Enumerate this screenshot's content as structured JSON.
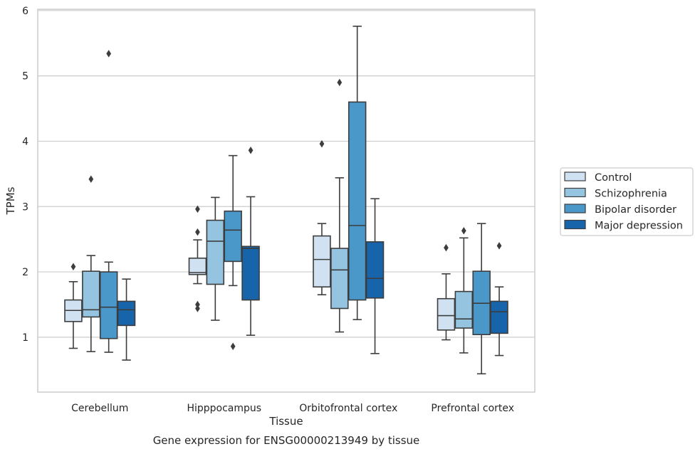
{
  "chart_data": {
    "type": "box",
    "title": "",
    "caption": "Gene expression for ENSG00000213949 by tissue",
    "xlabel": "Tissue",
    "ylabel": "TPMs",
    "ylim": [
      0.16,
      6.02
    ],
    "yticks": [
      1,
      2,
      3,
      4,
      5,
      6
    ],
    "grid": "horizontal",
    "legend_position": "right",
    "categories": [
      "Cerebellum",
      "Hipppocampus",
      "Orbitofrontal cortex",
      "Prefrontal cortex"
    ],
    "series": [
      {
        "name": "Control",
        "color": "#d0e1f2",
        "boxes": [
          {
            "whisker_low": 0.83,
            "q1": 1.24,
            "median": 1.41,
            "q3": 1.57,
            "whisker_high": 1.85,
            "outliers": [
              2.08
            ]
          },
          {
            "whisker_low": 1.82,
            "q1": 1.96,
            "median": 1.99,
            "q3": 2.21,
            "whisker_high": 2.49,
            "outliers": [
              2.96,
              2.61,
              1.5,
              1.44
            ]
          },
          {
            "whisker_low": 1.65,
            "q1": 1.77,
            "median": 2.19,
            "q3": 2.55,
            "whisker_high": 2.74,
            "outliers": [
              3.96
            ]
          },
          {
            "whisker_low": 0.96,
            "q1": 1.11,
            "median": 1.33,
            "q3": 1.59,
            "whisker_high": 1.97,
            "outliers": [
              2.37
            ]
          }
        ]
      },
      {
        "name": "Schizophrenia",
        "color": "#94c4df",
        "boxes": [
          {
            "whisker_low": 0.78,
            "q1": 1.31,
            "median": 1.42,
            "q3": 2.01,
            "whisker_high": 2.25,
            "outliers": [
              3.42
            ]
          },
          {
            "whisker_low": 1.26,
            "q1": 1.81,
            "median": 2.47,
            "q3": 2.79,
            "whisker_high": 3.14,
            "outliers": []
          },
          {
            "whisker_low": 1.08,
            "q1": 1.44,
            "median": 2.03,
            "q3": 2.36,
            "whisker_high": 3.44,
            "outliers": [
              4.9
            ]
          },
          {
            "whisker_low": 0.76,
            "q1": 1.14,
            "median": 1.28,
            "q3": 1.7,
            "whisker_high": 2.52,
            "outliers": [
              2.63
            ]
          }
        ]
      },
      {
        "name": "Bipolar disorder",
        "color": "#4a98c9",
        "boxes": [
          {
            "whisker_low": 0.77,
            "q1": 0.98,
            "median": 1.46,
            "q3": 2.0,
            "whisker_high": 2.15,
            "outliers": [
              5.34
            ]
          },
          {
            "whisker_low": 1.79,
            "q1": 2.16,
            "median": 2.64,
            "q3": 2.93,
            "whisker_high": 3.78,
            "outliers": [
              0.86
            ]
          },
          {
            "whisker_low": 1.27,
            "q1": 1.57,
            "median": 2.71,
            "q3": 4.6,
            "whisker_high": 5.76,
            "outliers": []
          },
          {
            "whisker_low": 0.44,
            "q1": 1.04,
            "median": 1.52,
            "q3": 2.01,
            "whisker_high": 2.74,
            "outliers": []
          }
        ]
      },
      {
        "name": "Major depression",
        "color": "#1764ab",
        "boxes": [
          {
            "whisker_low": 0.65,
            "q1": 1.18,
            "median": 1.42,
            "q3": 1.55,
            "whisker_high": 1.89,
            "outliers": []
          },
          {
            "whisker_low": 1.03,
            "q1": 1.57,
            "median": 2.36,
            "q3": 2.39,
            "whisker_high": 3.15,
            "outliers": [
              3.86
            ]
          },
          {
            "whisker_low": 0.75,
            "q1": 1.6,
            "median": 1.9,
            "q3": 2.46,
            "whisker_high": 3.12,
            "outliers": []
          },
          {
            "whisker_low": 0.72,
            "q1": 1.06,
            "median": 1.39,
            "q3": 1.55,
            "whisker_high": 1.77,
            "outliers": [
              2.4
            ]
          }
        ]
      }
    ]
  },
  "colors": {
    "axes_edge": "#cccccc",
    "grid": "#cccccc",
    "box_line": "#3d3d3d"
  }
}
